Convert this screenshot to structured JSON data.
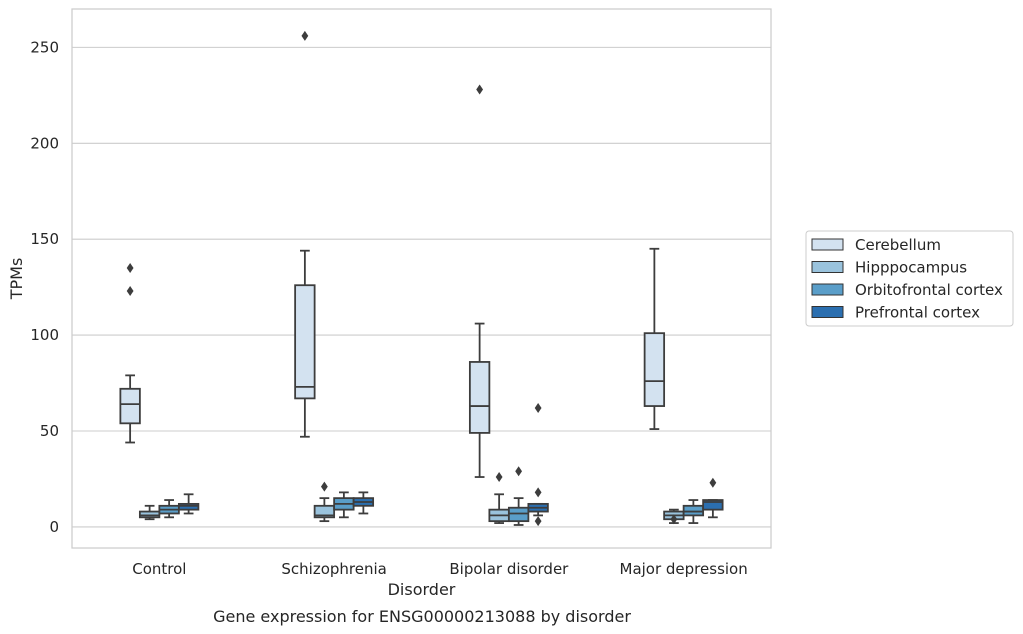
{
  "chart_data": {
    "type": "box",
    "xlabel": "Disorder",
    "ylabel": "TPMs",
    "caption": "Gene expression for ENSG00000213088 by disorder",
    "ylim": [
      -11,
      270
    ],
    "yticks": [
      0,
      50,
      100,
      150,
      200,
      250
    ],
    "grid": "horizontal",
    "legend_position": "right",
    "categories": [
      "Control",
      "Schizophrenia",
      "Bipolar disorder",
      "Major depression"
    ],
    "series": [
      {
        "name": "Cerebellum",
        "color": "#d3e2f0",
        "boxes": [
          {
            "whisker_low": 44,
            "q1": 54,
            "median": 64,
            "q3": 72,
            "whisker_high": 79,
            "outliers": [
              123,
              135
            ]
          },
          {
            "whisker_low": 47,
            "q1": 67,
            "median": 73,
            "q3": 126,
            "whisker_high": 144,
            "outliers": [
              256
            ]
          },
          {
            "whisker_low": 26,
            "q1": 49,
            "median": 63,
            "q3": 86,
            "whisker_high": 106,
            "outliers": [
              228
            ]
          },
          {
            "whisker_low": 51,
            "q1": 63,
            "median": 76,
            "q3": 101,
            "whisker_high": 145,
            "outliers": []
          }
        ]
      },
      {
        "name": "Hipppocampus",
        "color": "#9ac3dd",
        "boxes": [
          {
            "whisker_low": 4,
            "q1": 5,
            "median": 6,
            "q3": 8,
            "whisker_high": 11,
            "outliers": []
          },
          {
            "whisker_low": 3,
            "q1": 5,
            "median": 6,
            "q3": 11,
            "whisker_high": 15,
            "outliers": [
              21
            ]
          },
          {
            "whisker_low": 2,
            "q1": 3,
            "median": 6,
            "q3": 9,
            "whisker_high": 17,
            "outliers": [
              26
            ]
          },
          {
            "whisker_low": 2,
            "q1": 4,
            "median": 6,
            "q3": 8,
            "whisker_high": 9,
            "outliers": [
              4
            ]
          }
        ]
      },
      {
        "name": "Orbitofrontal cortex",
        "color": "#5a9ec9",
        "boxes": [
          {
            "whisker_low": 5,
            "q1": 7,
            "median": 9,
            "q3": 11,
            "whisker_high": 14,
            "outliers": []
          },
          {
            "whisker_low": 5,
            "q1": 9,
            "median": 12,
            "q3": 15,
            "whisker_high": 18,
            "outliers": []
          },
          {
            "whisker_low": 1,
            "q1": 3,
            "median": 7,
            "q3": 10,
            "whisker_high": 15,
            "outliers": [
              29
            ]
          },
          {
            "whisker_low": 2,
            "q1": 6,
            "median": 8,
            "q3": 11,
            "whisker_high": 14,
            "outliers": []
          }
        ]
      },
      {
        "name": "Prefrontal cortex",
        "color": "#2b6fb0",
        "boxes": [
          {
            "whisker_low": 7,
            "q1": 9,
            "median": 11,
            "q3": 12,
            "whisker_high": 17,
            "outliers": []
          },
          {
            "whisker_low": 7,
            "q1": 11,
            "median": 13,
            "q3": 15,
            "whisker_high": 18,
            "outliers": []
          },
          {
            "whisker_low": 6,
            "q1": 8,
            "median": 10,
            "q3": 12,
            "whisker_high": 12,
            "outliers": [
              3,
              18,
              62
            ]
          },
          {
            "whisker_low": 5,
            "q1": 9,
            "median": 13,
            "q3": 14,
            "whisker_high": 14,
            "outliers": [
              23
            ]
          }
        ]
      }
    ]
  }
}
